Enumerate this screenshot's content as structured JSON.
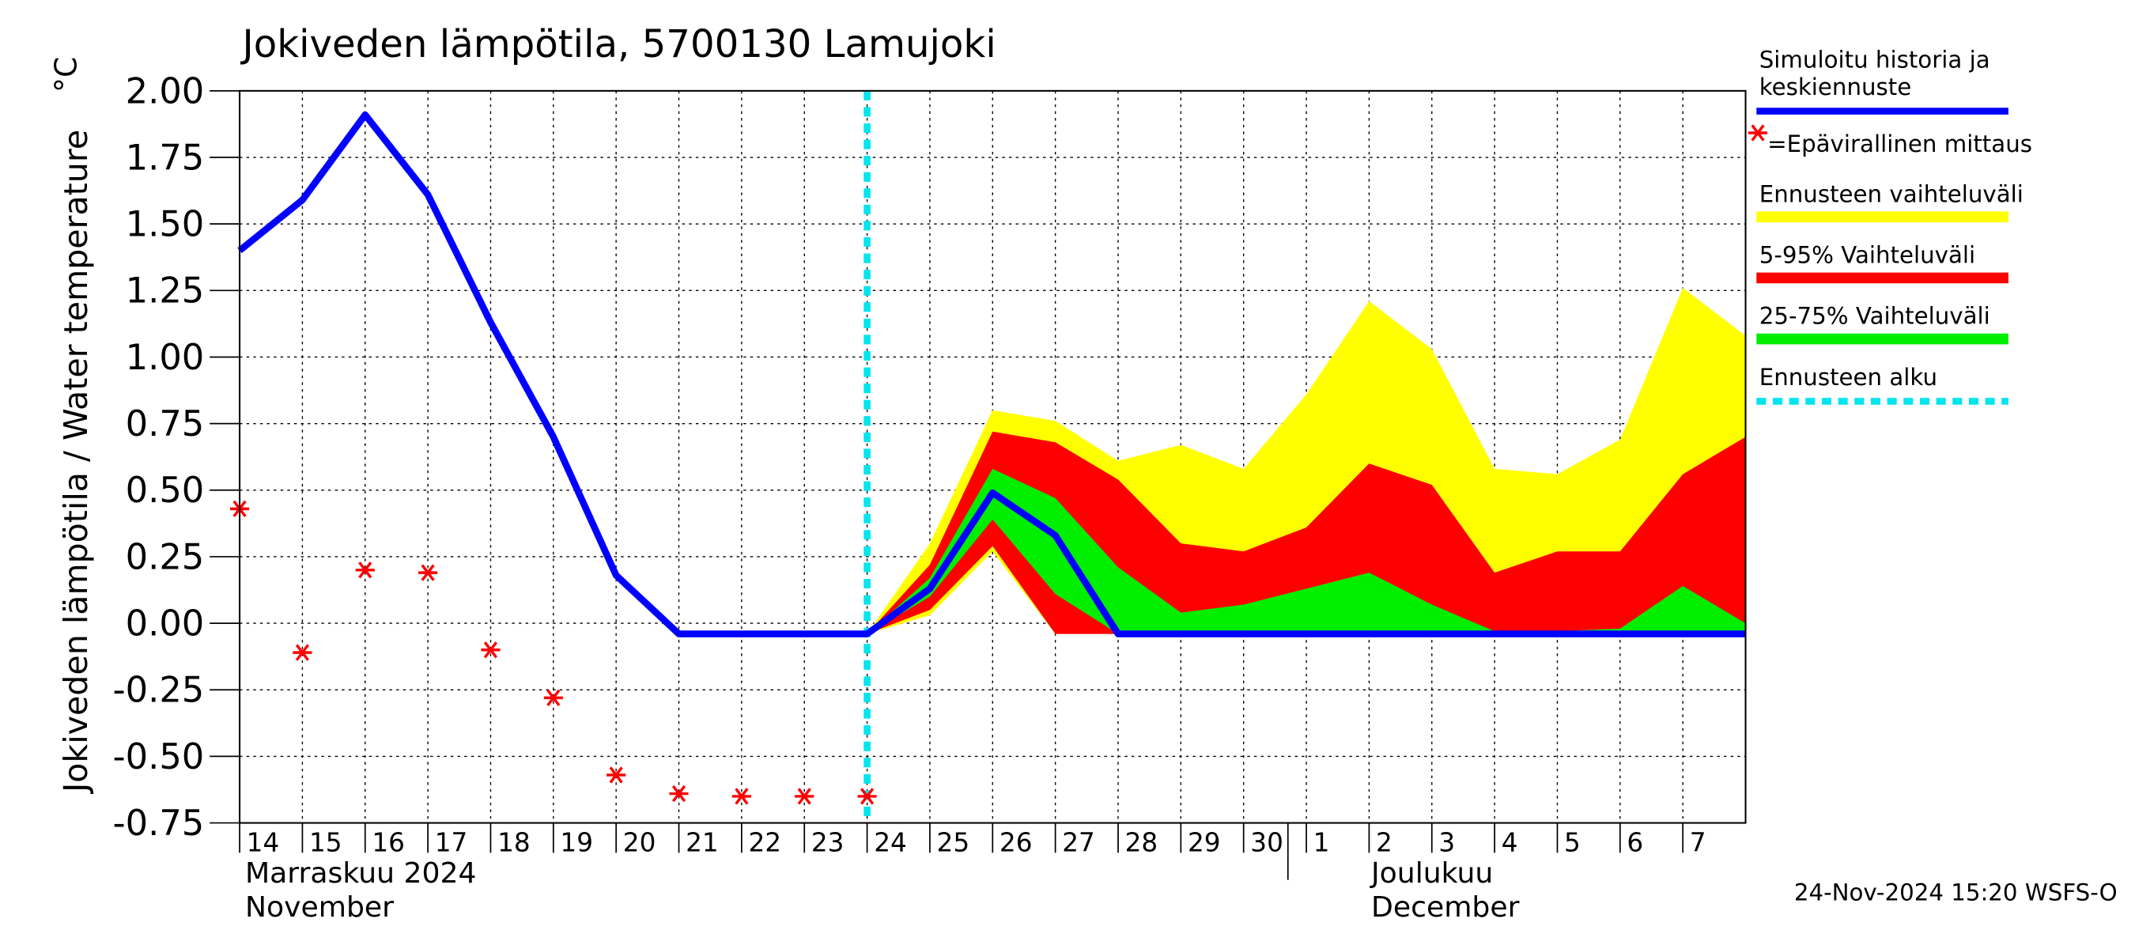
{
  "chart_data": {
    "type": "band-forecast",
    "title": "Jokiveden lämpötila, 5700130 Lamujoki",
    "y_label": "Jokiveden lämpötila / Water temperature",
    "y_unit": "°C",
    "month_labels": [
      "Marraskuu 2024",
      "November",
      "Joulukuu",
      "December"
    ],
    "timestamp": "24-Nov-2024 15:20 WSFS-O",
    "categories": [
      "14",
      "15",
      "16",
      "17",
      "18",
      "19",
      "20",
      "21",
      "22",
      "23",
      "24",
      "25",
      "26",
      "27",
      "28",
      "29",
      "30",
      "1",
      "2",
      "3",
      "4",
      "5",
      "6",
      "7",
      null
    ],
    "ylim": [
      -0.75,
      2.0
    ],
    "yticks": [
      {
        "value": 2.0,
        "label": "2.00"
      },
      {
        "value": 1.75,
        "label": "1.75"
      },
      {
        "value": 1.5,
        "label": "1.50"
      },
      {
        "value": 1.25,
        "label": "1.25"
      },
      {
        "value": 1.0,
        "label": "1.00"
      },
      {
        "value": 0.75,
        "label": "0.75"
      },
      {
        "value": 0.5,
        "label": "0.50"
      },
      {
        "value": 0.25,
        "label": "0.25"
      },
      {
        "value": 0,
        "label": "0.00"
      },
      {
        "value": -0.25,
        "label": "-0.25"
      },
      {
        "value": -0.5,
        "label": "-0.50"
      },
      {
        "value": -0.75,
        "label": "-0.75"
      }
    ],
    "grid": true,
    "forecast_start": "24",
    "series": [
      {
        "name": "Simuloitu historia ja\nkeskiennuste",
        "kind": "line",
        "color": "#0000ff",
        "values": [
          1.4,
          1.59,
          1.91,
          1.61,
          1.13,
          0.7,
          0.18,
          -0.04,
          -0.04,
          -0.04,
          -0.04,
          0.13,
          0.49,
          0.33,
          -0.04,
          -0.04,
          -0.04,
          -0.04,
          -0.04,
          -0.04,
          -0.04,
          -0.04,
          -0.04,
          -0.04,
          -0.04
        ]
      },
      {
        "name": "=Epävirallinen mittaus",
        "kind": "marker",
        "color": "#ff0000",
        "values": [
          0.43,
          -0.11,
          0.2,
          0.19,
          -0.1,
          -0.28,
          -0.57,
          -0.64,
          -0.65,
          -0.65,
          -0.65,
          null,
          null,
          null,
          null,
          null,
          null,
          null,
          null,
          null,
          null,
          null,
          null,
          null,
          null
        ]
      },
      {
        "name": "Ennusteen vaihteluväli",
        "kind": "band",
        "color": "#ffff00",
        "values": [
          null,
          null,
          null,
          null,
          null,
          null,
          null,
          null,
          null,
          null,
          -0.04,
          0.3,
          0.8,
          0.76,
          0.61,
          0.67,
          0.58,
          0.86,
          1.21,
          1.03,
          0.58,
          0.56,
          0.69,
          1.26,
          1.08
        ],
        "lower": [
          null,
          null,
          null,
          null,
          null,
          null,
          null,
          null,
          null,
          null,
          -0.04,
          0.03,
          0.27,
          -0.04,
          -0.04,
          -0.04,
          -0.04,
          -0.04,
          -0.04,
          -0.04,
          -0.04,
          -0.04,
          -0.04,
          -0.04,
          -0.04
        ]
      },
      {
        "name": "5-95% Vaihteluväli",
        "kind": "band",
        "color": "#ff0000",
        "values": [
          null,
          null,
          null,
          null,
          null,
          null,
          null,
          null,
          null,
          null,
          -0.04,
          0.22,
          0.72,
          0.68,
          0.54,
          0.3,
          0.27,
          0.36,
          0.6,
          0.52,
          0.19,
          0.27,
          0.27,
          0.56,
          0.7
        ],
        "lower": [
          null,
          null,
          null,
          null,
          null,
          null,
          null,
          null,
          null,
          null,
          -0.04,
          0.05,
          0.29,
          -0.04,
          -0.04,
          -0.04,
          -0.04,
          -0.04,
          -0.04,
          -0.04,
          -0.04,
          -0.04,
          -0.04,
          -0.04,
          -0.04
        ]
      },
      {
        "name": "25-75% Vaihteluväli",
        "kind": "band",
        "color": "#00ee00",
        "values": [
          null,
          null,
          null,
          null,
          null,
          null,
          null,
          null,
          null,
          null,
          -0.04,
          0.17,
          0.58,
          0.47,
          0.21,
          0.04,
          0.07,
          0.13,
          0.19,
          0.07,
          -0.03,
          -0.03,
          -0.02,
          0.14,
          0.0
        ],
        "lower": [
          null,
          null,
          null,
          null,
          null,
          null,
          null,
          null,
          null,
          null,
          -0.04,
          0.1,
          0.39,
          0.11,
          -0.04,
          -0.04,
          -0.04,
          -0.04,
          -0.04,
          -0.04,
          -0.04,
          -0.04,
          -0.04,
          -0.04,
          -0.04
        ]
      },
      {
        "name": "Ennusteen alku",
        "kind": "vline",
        "color": "#00e5ee"
      }
    ]
  }
}
